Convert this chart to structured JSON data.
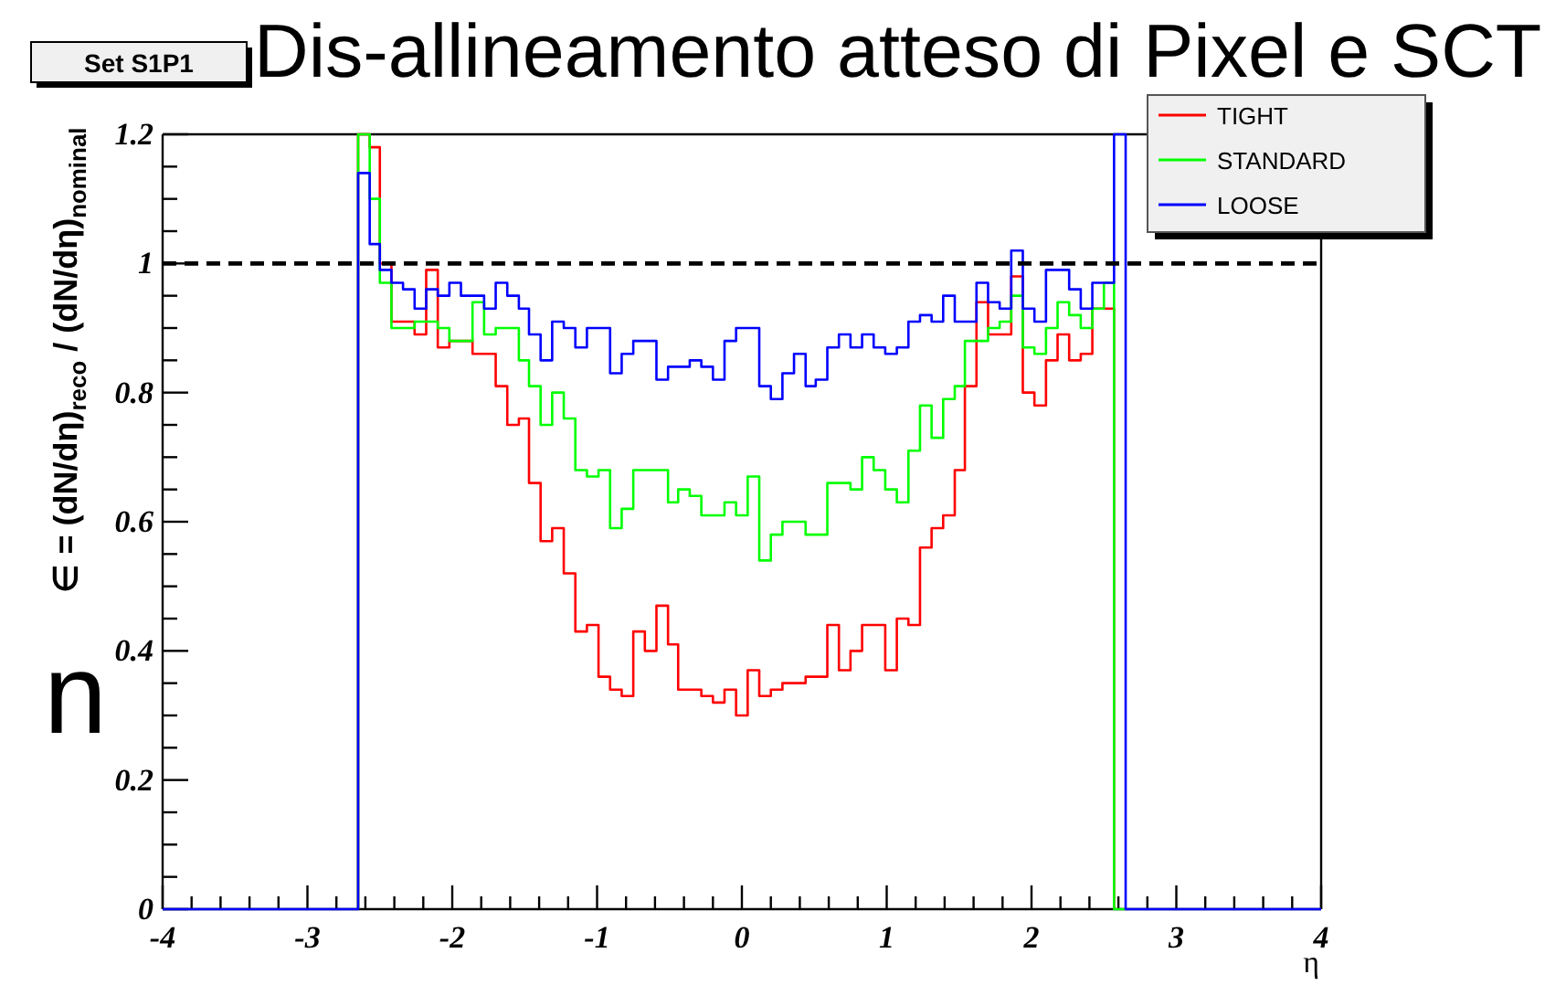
{
  "chart_data": {
    "type": "histogram",
    "title": "Dis-allineamento atteso di Pixel e SCT",
    "subtitle": "Set S1P1",
    "xlabel": "η",
    "ylabel": "∈ = (dN/dη)$_{reco}$ / (dN/dη)$_{nominal}$",
    "annotations": [
      "n"
    ],
    "bins": [
      -2.65,
      -2.57,
      -2.5,
      -2.42,
      -2.34,
      -2.26,
      -2.18,
      -2.1,
      -2.02,
      -1.94,
      -1.86,
      -1.78,
      -1.7,
      -1.62,
      -1.54,
      -1.47,
      -1.39,
      -1.31,
      -1.23,
      -1.15,
      -1.07,
      -0.99,
      -0.91,
      -0.83,
      -0.75,
      -0.67,
      -0.59,
      -0.51,
      -0.44,
      -0.36,
      -0.28,
      -0.2,
      -0.12,
      -0.04,
      0.04,
      0.12,
      0.2,
      0.28,
      0.36,
      0.44,
      0.51,
      0.59,
      0.67,
      0.75,
      0.83,
      0.91,
      0.99,
      1.07,
      1.15,
      1.23,
      1.31,
      1.39,
      1.47,
      1.54,
      1.62,
      1.7,
      1.78,
      1.86,
      1.94,
      2.02,
      2.1,
      2.18,
      2.26,
      2.34,
      2.42,
      2.5,
      2.57,
      2.65
    ],
    "series": [
      {
        "name": "TIGHT",
        "color": "#ff0000",
        "bins": [
          -2.65,
          -2.57,
          -2.5,
          -2.42,
          -2.34,
          -2.26,
          -2.18,
          -2.1,
          -2.02,
          -1.94,
          -1.86,
          -1.78,
          -1.7,
          -1.62,
          -1.54,
          -1.47,
          -1.39,
          -1.31,
          -1.23,
          -1.15,
          -1.07,
          -0.99,
          -0.91,
          -0.83,
          -0.75,
          -0.67,
          -0.59,
          -0.51,
          -0.44,
          -0.36,
          -0.28,
          -0.2,
          -0.12,
          -0.04,
          0.04,
          0.12,
          0.2,
          0.28,
          0.36,
          0.44,
          0.51,
          0.59,
          0.67,
          0.75,
          0.83,
          0.91,
          0.99,
          1.07,
          1.15,
          1.23,
          1.31,
          1.39,
          1.47,
          1.54,
          1.62,
          1.7,
          1.78,
          1.86,
          1.94,
          2.02,
          2.1,
          2.18,
          2.26,
          2.34,
          2.42,
          2.5,
          2.57
        ],
        "values": [
          1.2,
          1.18,
          1.0,
          0.91,
          0.91,
          0.89,
          0.99,
          0.87,
          0.88,
          0.88,
          0.86,
          0.86,
          0.81,
          0.75,
          0.76,
          0.66,
          0.57,
          0.59,
          0.52,
          0.43,
          0.44,
          0.36,
          0.34,
          0.33,
          0.43,
          0.4,
          0.47,
          0.41,
          0.34,
          0.34,
          0.33,
          0.32,
          0.34,
          0.3,
          0.37,
          0.33,
          0.34,
          0.35,
          0.35,
          0.36,
          0.36,
          0.44,
          0.37,
          0.4,
          0.44,
          0.44,
          0.37,
          0.45,
          0.44,
          0.56,
          0.59,
          0.61,
          0.68,
          0.81,
          0.94,
          0.89,
          0.89,
          0.98,
          0.8,
          0.78,
          0.85,
          0.89,
          0.85,
          0.86,
          0.93,
          0.93
        ]
      },
      {
        "name": "STANDARD",
        "color": "#00ff00",
        "values": [
          1.2,
          1.1,
          0.97,
          0.9,
          0.9,
          0.91,
          0.91,
          0.9,
          0.88,
          0.88,
          0.94,
          0.89,
          0.9,
          0.9,
          0.85,
          0.81,
          0.75,
          0.8,
          0.76,
          0.68,
          0.67,
          0.68,
          0.59,
          0.62,
          0.68,
          0.68,
          0.68,
          0.63,
          0.65,
          0.64,
          0.61,
          0.61,
          0.63,
          0.61,
          0.67,
          0.54,
          0.58,
          0.6,
          0.6,
          0.58,
          0.58,
          0.66,
          0.66,
          0.65,
          0.7,
          0.68,
          0.65,
          0.63,
          0.71,
          0.78,
          0.73,
          0.79,
          0.81,
          0.88,
          0.88,
          0.9,
          0.91,
          0.95,
          0.87,
          0.86,
          0.9,
          0.94,
          0.92,
          0.9,
          0.93,
          0.97,
          0
        ]
      },
      {
        "name": "LOOSE",
        "color": "#0000ff",
        "bins": [
          -4,
          -2.65,
          -2.57,
          -2.5,
          -2.42,
          -2.34,
          -2.26,
          -2.18,
          -2.1,
          -2.02,
          -1.94,
          -1.86,
          -1.78,
          -1.7,
          -1.62,
          -1.54,
          -1.47,
          -1.39,
          -1.31,
          -1.23,
          -1.15,
          -1.07,
          -0.99,
          -0.91,
          -0.83,
          -0.75,
          -0.67,
          -0.59,
          -0.51,
          -0.44,
          -0.36,
          -0.28,
          -0.2,
          -0.12,
          -0.04,
          0.04,
          0.12,
          0.2,
          0.28,
          0.36,
          0.44,
          0.51,
          0.59,
          0.67,
          0.75,
          0.83,
          0.91,
          0.99,
          1.07,
          1.15,
          1.23,
          1.31,
          1.39,
          1.47,
          1.54,
          1.62,
          1.7,
          1.78,
          1.86,
          1.94,
          2.02,
          2.1,
          2.18,
          2.26,
          2.34,
          2.42,
          2.5,
          2.57,
          2.65,
          4
        ],
        "values": [
          0,
          1.14,
          1.03,
          0.99,
          0.97,
          0.96,
          0.93,
          0.96,
          0.95,
          0.97,
          0.95,
          0.95,
          0.93,
          0.97,
          0.95,
          0.93,
          0.89,
          0.85,
          0.91,
          0.9,
          0.87,
          0.9,
          0.9,
          0.83,
          0.86,
          0.88,
          0.88,
          0.82,
          0.84,
          0.84,
          0.85,
          0.84,
          0.82,
          0.88,
          0.9,
          0.9,
          0.81,
          0.79,
          0.83,
          0.86,
          0.81,
          0.82,
          0.87,
          0.89,
          0.87,
          0.89,
          0.87,
          0.86,
          0.87,
          0.91,
          0.92,
          0.91,
          0.95,
          0.91,
          0.91,
          0.97,
          0.94,
          0.93,
          1.02,
          0.93,
          0.91,
          0.99,
          0.99,
          0.96,
          0.93,
          0.97,
          0.97,
          1.2,
          0
        ]
      }
    ],
    "xlim": [
      -4,
      4
    ],
    "ylim": [
      0,
      1.2
    ],
    "xticks": [
      -4,
      {
        "value": -3.8,
        "label": null
      },
      {
        "value": -3.6,
        "label": null
      },
      {
        "value": -3.4,
        "label": null
      },
      {
        "value": -3.2,
        "label": null
      },
      -3,
      {
        "value": -2.8,
        "label": null
      },
      {
        "value": -2.6,
        "label": null
      },
      {
        "value": -2.4,
        "label": null
      },
      {
        "value": -2.2,
        "label": null
      },
      -2,
      {
        "value": -1.8,
        "label": null
      },
      {
        "value": -1.6,
        "label": null
      },
      {
        "value": -1.4,
        "label": null
      },
      {
        "value": -1.2,
        "label": null
      },
      -1,
      {
        "value": -0.8,
        "label": null
      },
      {
        "value": -0.6,
        "label": null
      },
      {
        "value": -0.4,
        "label": null
      },
      {
        "value": -0.2,
        "label": null
      },
      0,
      {
        "value": 0.2,
        "label": null
      },
      {
        "value": 0.4,
        "label": null
      },
      {
        "value": 0.6,
        "label": null
      },
      {
        "value": 0.8,
        "label": null
      },
      1,
      {
        "value": 1.2,
        "label": null
      },
      {
        "value": 1.4,
        "label": null
      },
      {
        "value": 1.6,
        "label": null
      },
      {
        "value": 1.8,
        "label": null
      },
      2,
      {
        "value": 2.2,
        "label": null
      },
      {
        "value": 2.4,
        "label": null
      },
      {
        "value": 2.6,
        "label": null
      },
      {
        "value": 2.8,
        "label": null
      },
      3,
      {
        "value": 3.2,
        "label": null
      },
      {
        "value": 3.4,
        "label": null
      },
      {
        "value": 3.6,
        "label": null
      },
      {
        "value": 3.8,
        "label": null
      },
      4
    ],
    "yticks": [
      0,
      {
        "value": 0.05,
        "label": null
      },
      {
        "value": 0.1,
        "label": null
      },
      {
        "value": 0.15,
        "label": null
      },
      0.2,
      {
        "value": 0.25,
        "label": null
      },
      {
        "value": 0.3,
        "label": null
      },
      {
        "value": 0.35,
        "label": null
      },
      0.4,
      {
        "value": 0.45,
        "label": null
      },
      {
        "value": 0.5,
        "label": null
      },
      {
        "value": 0.55,
        "label": null
      },
      0.6,
      {
        "value": 0.65,
        "label": null
      },
      {
        "value": 0.7,
        "label": null
      },
      {
        "value": 0.75,
        "label": null
      },
      0.8,
      {
        "value": 0.85,
        "label": null
      },
      {
        "value": 0.9,
        "label": null
      },
      {
        "value": 0.95,
        "label": null
      },
      1,
      {
        "value": 1.05,
        "label": null
      },
      {
        "value": 1.1,
        "label": null
      },
      {
        "value": 1.15,
        "label": null
      },
      1.2
    ],
    "ref_lines": [
      {
        "axis": "y",
        "value": 1,
        "color": "#000000",
        "line_style": "dashed"
      }
    ],
    "legend": "top right"
  }
}
